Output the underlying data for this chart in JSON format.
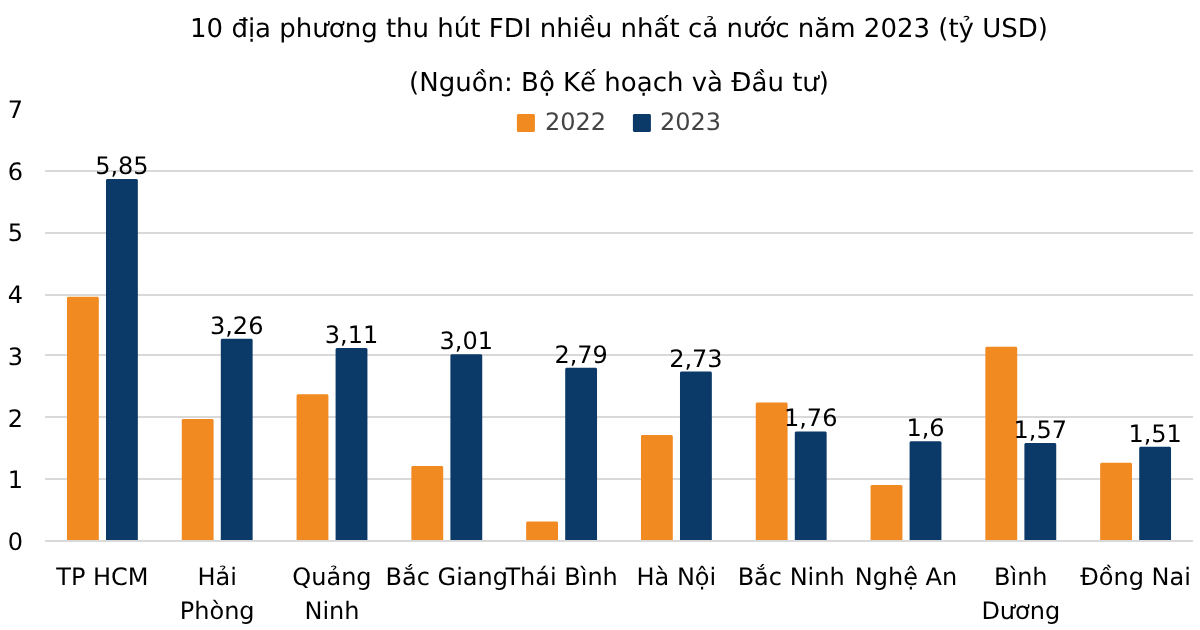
{
  "chart_data": {
    "type": "bar",
    "title": "10 địa phương thu hút FDI nhiều nhất cả nước năm 2023 (tỷ USD)",
    "subtitle": "(Nguồn: Bộ Kế hoạch và Đầu tư)",
    "categories": [
      "TP HCM",
      "Hải\nPhòng",
      "Quảng\nNinh",
      "Bắc Giang",
      "Thái Bình",
      "Hà Nội",
      "Bắc Ninh",
      "Nghệ An",
      "Bình\nDương",
      "Đồng Nai"
    ],
    "series": [
      {
        "name": "2022",
        "color": "#f28a22",
        "values": [
          3.94,
          1.96,
          2.36,
          1.2,
          0.3,
          1.7,
          2.23,
          0.89,
          3.13,
          1.25
        ]
      },
      {
        "name": "2023",
        "color": "#0b3a68",
        "values": [
          5.85,
          3.26,
          3.11,
          3.01,
          2.79,
          2.73,
          1.76,
          1.6,
          1.57,
          1.51
        ],
        "value_labels": [
          "5,85",
          "3,26",
          "3,11",
          "3,01",
          "2,79",
          "2,73",
          "1,76",
          "1,6",
          "1,57",
          "1,51"
        ]
      }
    ],
    "ylim": [
      0,
      7
    ],
    "yticks": [
      0,
      1,
      2,
      3,
      4,
      5,
      6,
      7
    ],
    "grid": "y",
    "legend": "top"
  }
}
